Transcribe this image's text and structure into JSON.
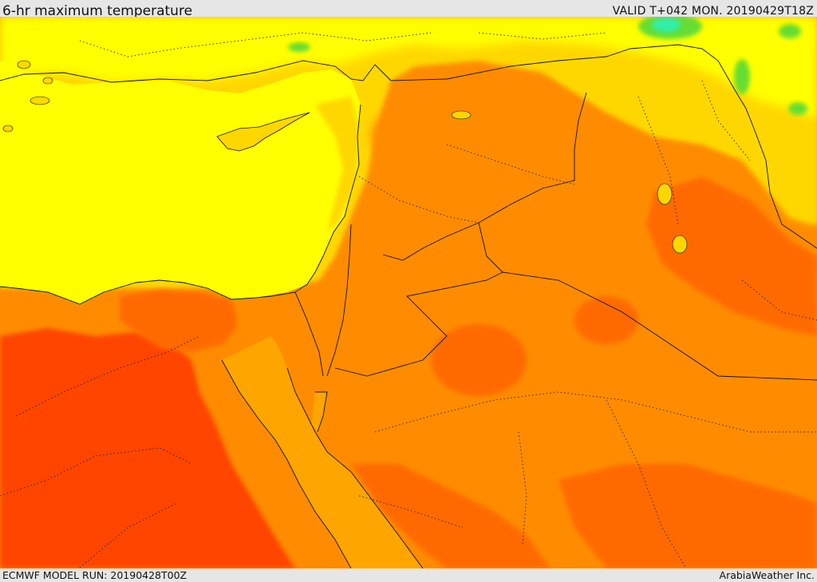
{
  "header": {
    "title": "6-hr maximum temperature",
    "valid_time": "VALID T+042 MON. 20190429T18Z"
  },
  "footer": {
    "model_run": "ECMWF MODEL RUN: 20190428T00Z",
    "credit": "ArabiaWeather Inc."
  },
  "map": {
    "field": "6-hr maximum temperature",
    "region": "Eastern Mediterranean, Levant and northern Arabia",
    "colors": {
      "yellow": "#ffff00",
      "gold": "#ffd700",
      "orange_light": "#ffa500",
      "orange": "#ff8c00",
      "orange_dark": "#ff6a00",
      "red_orange": "#ff4500",
      "green": "#66dd33",
      "cyan": "#33eeaa",
      "border_line": "#111111"
    }
  }
}
